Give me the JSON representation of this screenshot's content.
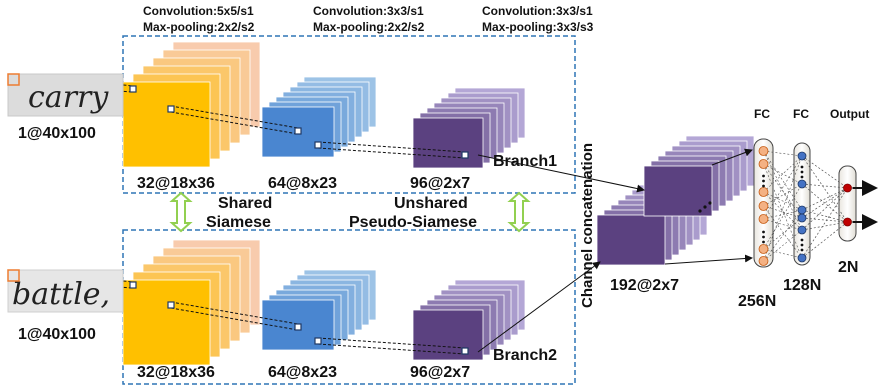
{
  "conv_labels": [
    {
      "line1": "Convolution:5x5/s1",
      "line2": "Max-pooling:2x2/s2"
    },
    {
      "line1": "Convolution:3x3/s1",
      "line2": "Max-pooling:2x2/s2"
    },
    {
      "line1": "Convolution:3x3/s1",
      "line2": "Max-pooling:3x3/s3"
    }
  ],
  "input_dim": "1@40x100",
  "input_words": [
    "carry",
    "battle,"
  ],
  "branch1": {
    "layer1_dim": "32@18x36",
    "layer2_dim": "64@8x23",
    "layer3_dim": "96@2x7",
    "name": "Branch1"
  },
  "branch2": {
    "layer1_dim": "32@18x36",
    "layer2_dim": "64@8x23",
    "layer3_dim": "96@2x7",
    "name": "Branch2"
  },
  "shared_label": {
    "line1": "Shared",
    "line2": "Siamese"
  },
  "unshared_label": {
    "line1": "Unshared",
    "line2": "Pseudo-Siamese"
  },
  "concat_label": "Channel concatenation",
  "concat_dim": "192@2x7",
  "fc": {
    "fc1_title": "FC",
    "fc2_title": "FC",
    "output_title": "Output",
    "fc1_dim": "256N",
    "fc2_dim": "128N",
    "output_dim": "2N"
  },
  "colors": {
    "layer1": "#ffc000",
    "layer1_back": "#f8cbad",
    "layer2": "#4a86d0",
    "layer2_back": "#9dc3e6",
    "layer3": "#5b4180",
    "layer3_back": "#b4a7d6",
    "frame": "#2e75b6",
    "arrow": "#92d050",
    "input_marker": "#ed7d31"
  }
}
